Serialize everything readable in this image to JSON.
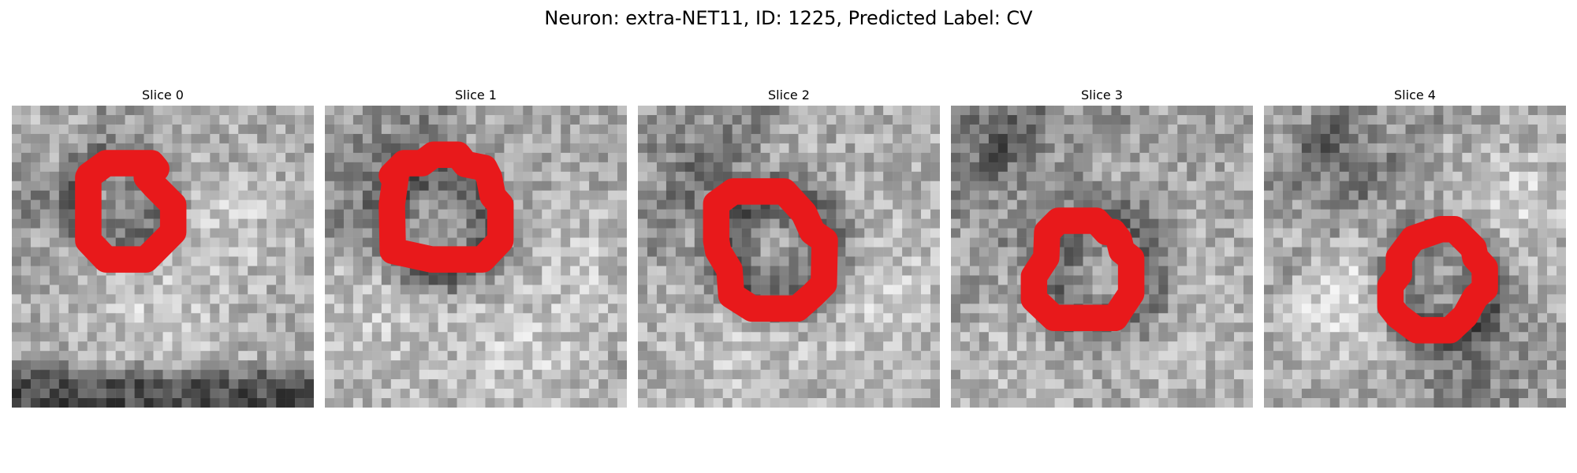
{
  "figure": {
    "suptitle": "Neuron: extra-NET11, ID: 1225, Predicted Label: CV"
  },
  "panels": [
    {
      "title": "Slice 0"
    },
    {
      "title": "Slice 1"
    },
    {
      "title": "Slice 2"
    },
    {
      "title": "Slice 3"
    },
    {
      "title": "Slice 4"
    }
  ],
  "colors": {
    "outline": "#e8191b",
    "background": "#ffffff"
  }
}
